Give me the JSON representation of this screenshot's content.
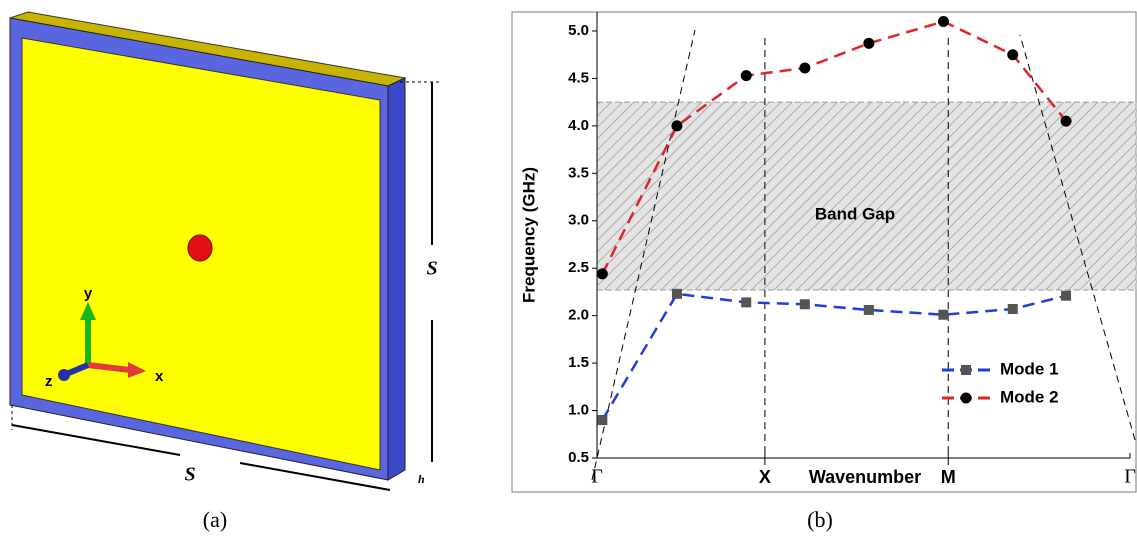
{
  "chart_data": {
    "type": "line",
    "x_label": "Wavenumber",
    "y_label": "Frequency (GHz)",
    "xlim": [
      0,
      1
    ],
    "ylim": [
      0.5,
      5.2
    ],
    "xticks": [
      {
        "value": 0,
        "label": "Γ"
      },
      {
        "value": 0.315,
        "label": "X"
      },
      {
        "value": 0.659,
        "label": "M"
      },
      {
        "value": 1,
        "label": "Γ"
      }
    ],
    "yticks": [
      0.5,
      {
        "value": 1,
        "label": "1.0"
      },
      1.5,
      {
        "value": 2,
        "label": "2.0"
      },
      2.5,
      {
        "value": 3,
        "label": "3.0"
      },
      3.5,
      {
        "value": 4,
        "label": "4.0"
      },
      4.5,
      {
        "value": 5,
        "label": "5.0"
      }
    ],
    "band_gap": {
      "label": "Band Gap",
      "range": [
        2.27,
        4.25
      ]
    },
    "legend": "lower right",
    "series": [
      {
        "name": "Mode 1",
        "color": "#1f3fd6",
        "marker": "square",
        "marker_color": "#555555",
        "x": [
          0.01,
          0.15,
          0.28,
          0.39,
          0.51,
          0.65,
          0.78,
          0.88
        ],
        "values": [
          0.9,
          2.23,
          2.14,
          2.12,
          2.06,
          2.01,
          2.07,
          2.21
        ]
      },
      {
        "name": "Mode 2",
        "color": "#e0242a",
        "marker": "circle",
        "marker_color": "#000000",
        "x": [
          0.01,
          0.15,
          0.28,
          0.39,
          0.51,
          0.65,
          0.78,
          0.88
        ],
        "values": [
          2.44,
          4.0,
          4.53,
          4.61,
          4.87,
          5.1,
          4.75,
          4.05
        ]
      }
    ]
  },
  "diagram": {
    "axes": [
      "y",
      "x",
      "z"
    ],
    "dimensions": [
      "S",
      "S",
      "h"
    ]
  },
  "captions": [
    "(a)",
    "(b)"
  ]
}
